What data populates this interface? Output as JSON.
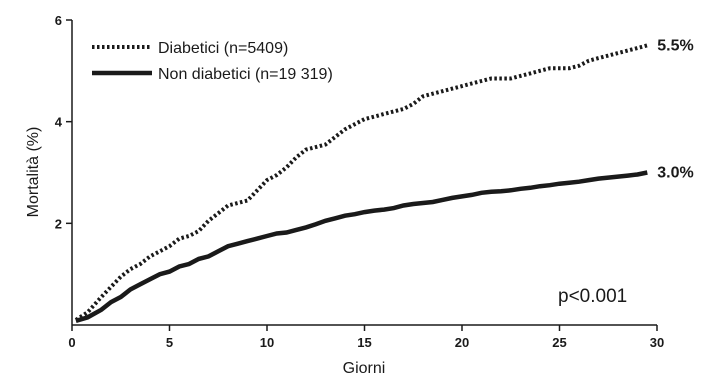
{
  "chart_data": {
    "type": "line",
    "xlabel": "Giorni",
    "ylabel": "Mortalità (%)",
    "xlim": [
      0,
      30
    ],
    "ylim": [
      0,
      6
    ],
    "xticks": [
      "0",
      "5",
      "10",
      "15",
      "20",
      "25",
      "30"
    ],
    "yticks": [
      "2",
      "4",
      "6"
    ],
    "grid": false,
    "legend_position": "top-left",
    "annotation": "p<0.001",
    "series": [
      {
        "name": "Diabetici  (n=5409)",
        "style": "dotted",
        "end_label": "5.5%",
        "x": [
          0.2,
          0.8,
          1.5,
          2,
          2.5,
          3,
          3.5,
          4,
          4.5,
          5,
          5.5,
          6,
          6.5,
          7,
          7.5,
          8,
          8.5,
          9,
          9.5,
          10,
          10.5,
          11,
          11.5,
          12,
          12.5,
          13,
          13.5,
          14,
          14.5,
          15,
          15.5,
          16,
          16.5,
          17,
          17.5,
          18,
          18.5,
          19,
          19.5,
          20,
          20.5,
          21,
          21.5,
          22,
          22.5,
          23,
          23.5,
          24,
          24.5,
          25,
          25.5,
          26,
          26.5,
          27,
          27.5,
          28,
          28.5,
          29,
          29.5
        ],
        "y": [
          0.1,
          0.25,
          0.55,
          0.75,
          0.95,
          1.1,
          1.2,
          1.35,
          1.45,
          1.55,
          1.7,
          1.75,
          1.85,
          2.05,
          2.2,
          2.35,
          2.4,
          2.45,
          2.65,
          2.85,
          2.95,
          3.1,
          3.3,
          3.45,
          3.5,
          3.55,
          3.7,
          3.85,
          3.95,
          4.05,
          4.1,
          4.15,
          4.2,
          4.25,
          4.35,
          4.5,
          4.55,
          4.6,
          4.65,
          4.7,
          4.75,
          4.8,
          4.85,
          4.85,
          4.85,
          4.9,
          4.95,
          5.0,
          5.05,
          5.05,
          5.05,
          5.1,
          5.2,
          5.25,
          5.3,
          5.35,
          5.4,
          5.45,
          5.5
        ]
      },
      {
        "name": "Non diabetici (n=19 319)",
        "style": "solid",
        "end_label": "3.0%",
        "x": [
          0.2,
          0.8,
          1.5,
          2,
          2.5,
          3,
          3.5,
          4,
          4.5,
          5,
          5.5,
          6,
          6.5,
          7,
          7.5,
          8,
          8.5,
          9,
          9.5,
          10,
          10.5,
          11,
          11.5,
          12,
          12.5,
          13,
          13.5,
          14,
          14.5,
          15,
          15.5,
          16,
          16.5,
          17,
          17.5,
          18,
          18.5,
          19,
          19.5,
          20,
          20.5,
          21,
          21.5,
          22,
          22.5,
          23,
          23.5,
          24,
          24.5,
          25,
          25.5,
          26,
          26.5,
          27,
          27.5,
          28,
          28.5,
          29,
          29.5
        ],
        "y": [
          0.08,
          0.15,
          0.3,
          0.45,
          0.55,
          0.7,
          0.8,
          0.9,
          1.0,
          1.05,
          1.15,
          1.2,
          1.3,
          1.35,
          1.45,
          1.55,
          1.6,
          1.65,
          1.7,
          1.75,
          1.8,
          1.82,
          1.87,
          1.92,
          1.98,
          2.05,
          2.1,
          2.15,
          2.18,
          2.22,
          2.25,
          2.27,
          2.3,
          2.35,
          2.38,
          2.4,
          2.42,
          2.46,
          2.5,
          2.53,
          2.56,
          2.6,
          2.62,
          2.63,
          2.65,
          2.68,
          2.7,
          2.73,
          2.75,
          2.78,
          2.8,
          2.82,
          2.85,
          2.88,
          2.9,
          2.92,
          2.94,
          2.96,
          3.0
        ]
      }
    ]
  },
  "colors": {
    "line": "#1a1a1a",
    "axis": "#1a1a1a"
  }
}
